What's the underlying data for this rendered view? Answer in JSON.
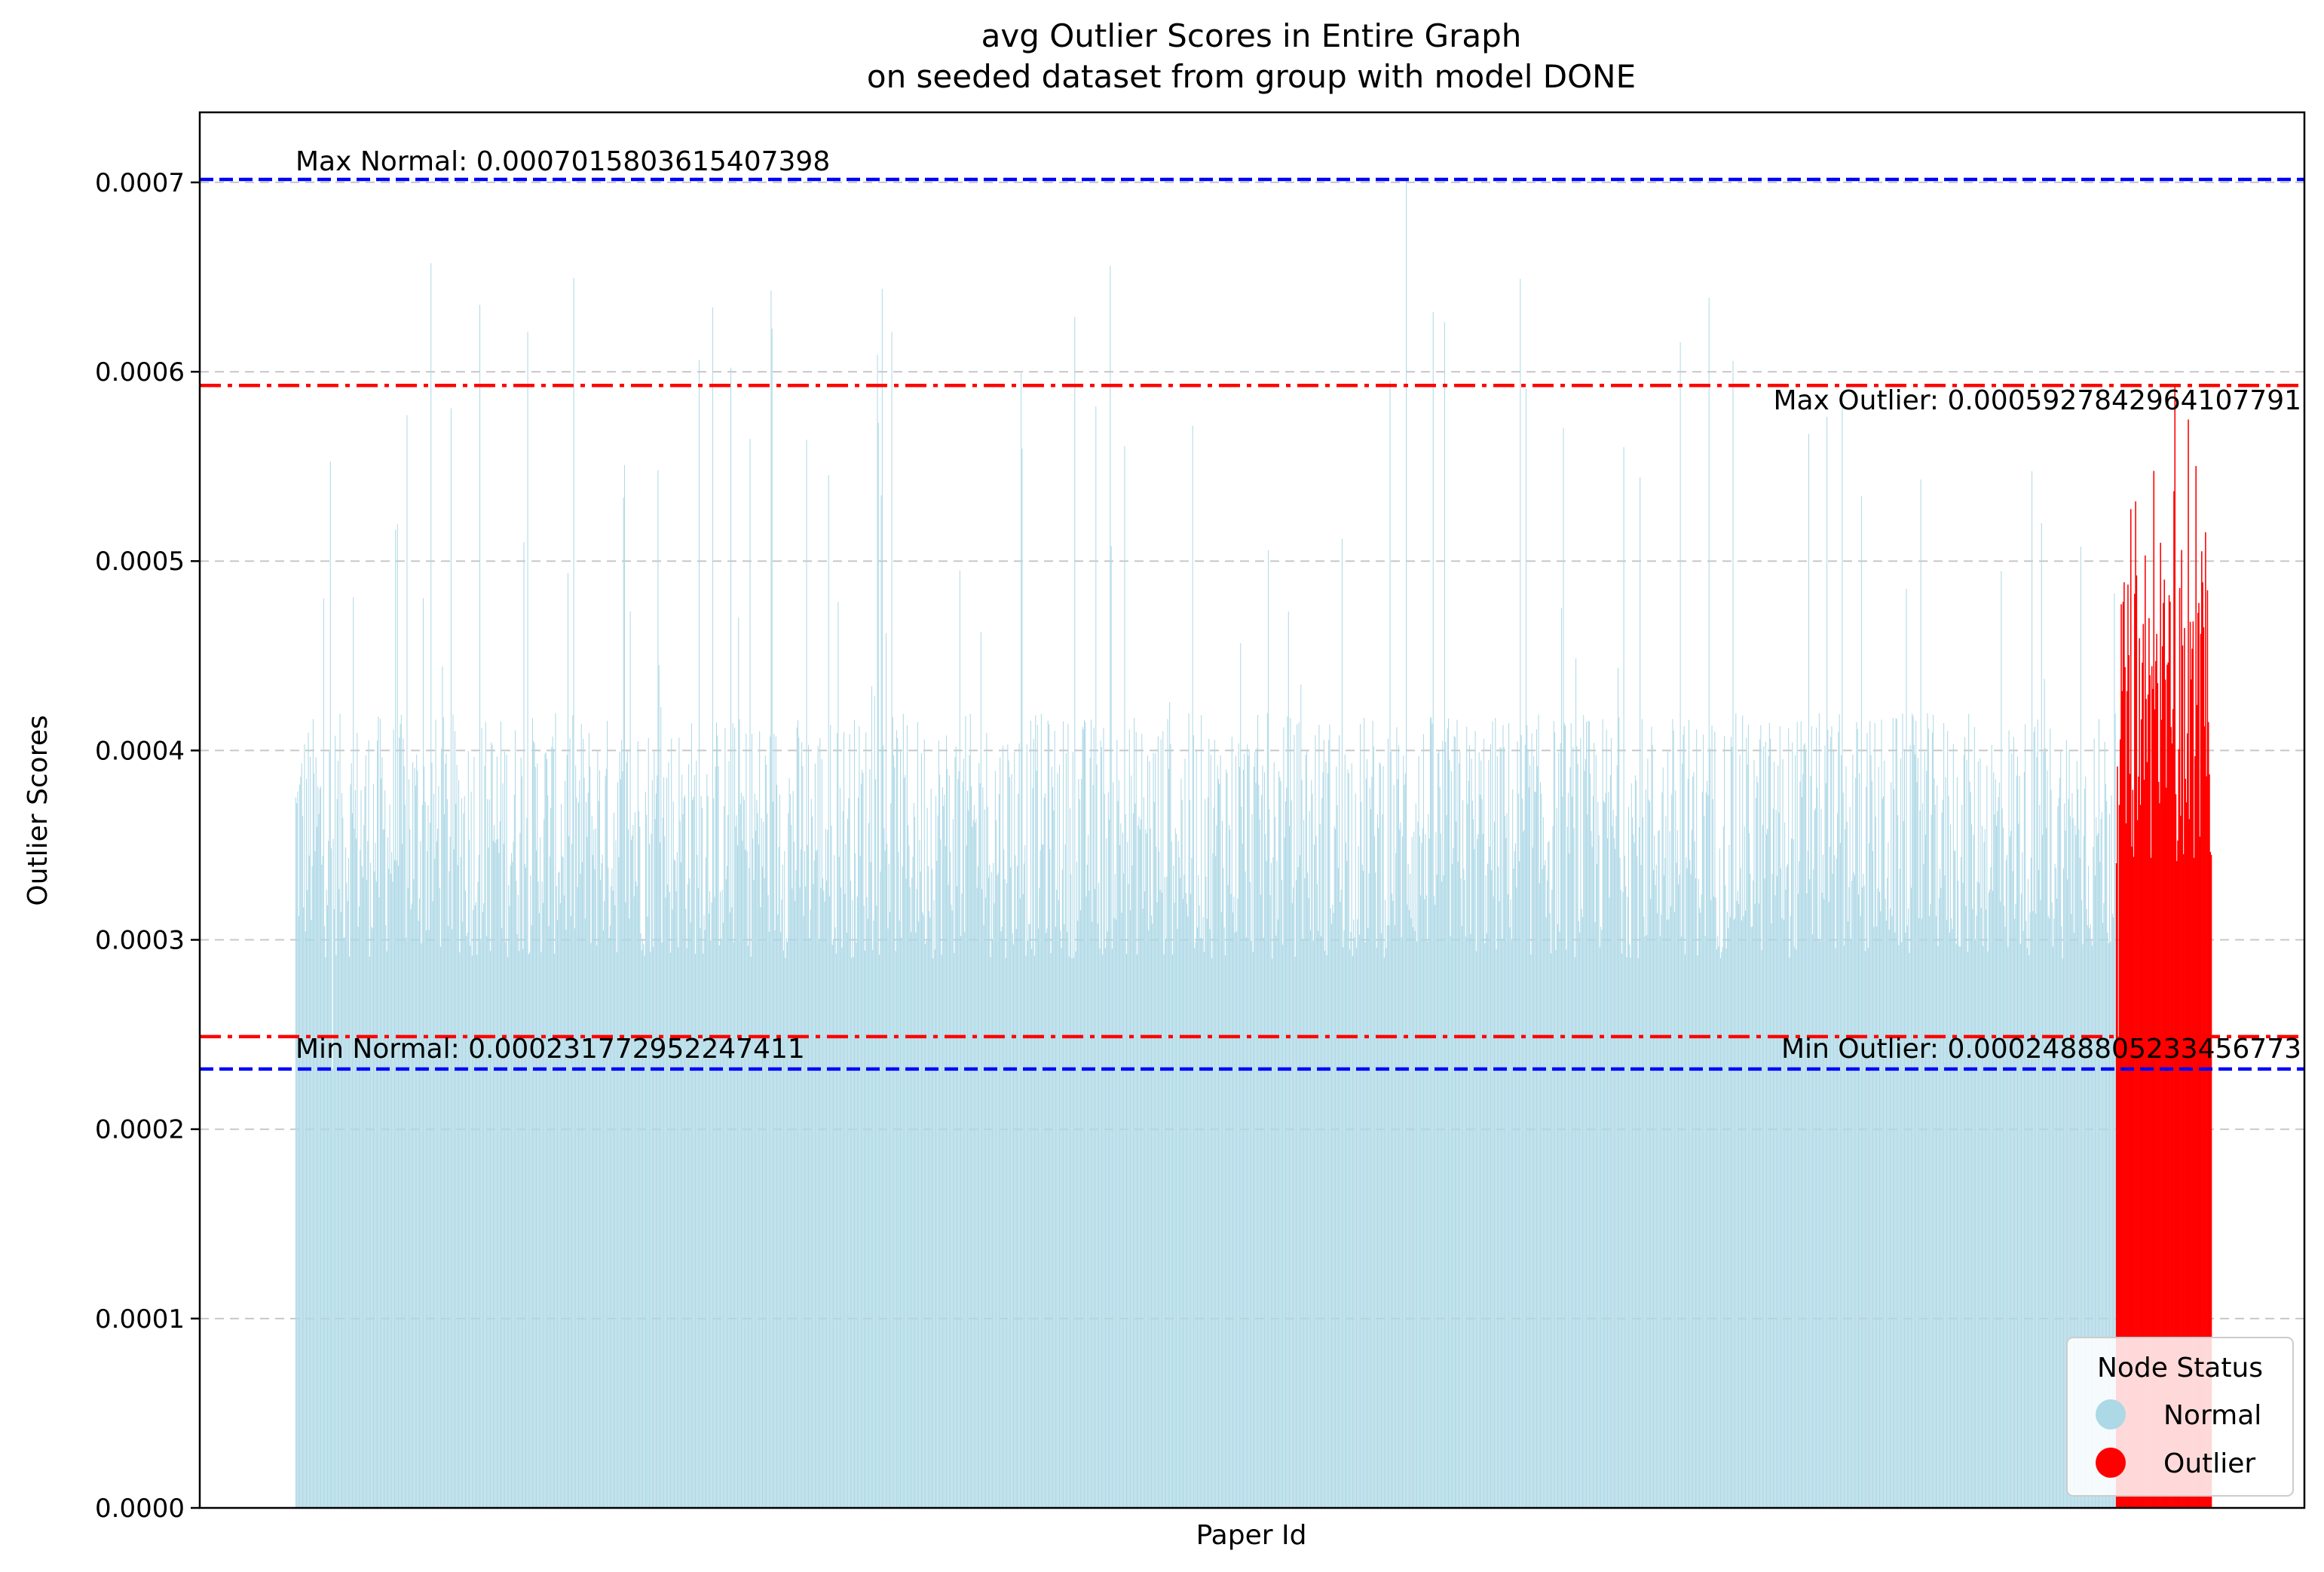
{
  "chart_data": {
    "type": "bar",
    "title": "avg Outlier Scores in Entire Graph",
    "subtitle": "on seeded dataset from group with model DONE",
    "xlabel": "Paper Id",
    "ylabel": "Outlier Scores",
    "ylim": [
      0,
      0.000737
    ],
    "yticks": [
      "0.0000",
      "0.0001",
      "0.0002",
      "0.0003",
      "0.0004",
      "0.0005",
      "0.0006",
      "0.0007"
    ],
    "ytick_values": [
      0,
      0.0001,
      0.0002,
      0.0003,
      0.0004,
      0.0005,
      0.0006,
      0.0007
    ],
    "grid": "horizontal dashed",
    "series": [
      {
        "name": "Normal",
        "color": "#add8e6",
        "count": 1900,
        "min": 0.000231772952247411,
        "max": 0.0007015803615407398,
        "typical_range": [
          0.00029,
          0.00042
        ]
      },
      {
        "name": "Outlier",
        "color": "#ff0000",
        "count": 100,
        "min": 0.0002488805233456773,
        "max": 0.0005927842964107791,
        "typical_range": [
          0.00034,
          0.00049
        ]
      }
    ],
    "reference_lines": [
      {
        "label": "Max Normal: 0.0007015803615407398",
        "value": 0.0007015803615407398,
        "color": "#0000ff",
        "style": "dashed"
      },
      {
        "label": "Max Outlier: 0.0005927842964107791",
        "value": 0.0005927842964107791,
        "color": "#ff0000",
        "style": "dashdot"
      },
      {
        "label": "Min Outlier: 0.0002488805233456773",
        "value": 0.0002488805233456773,
        "color": "#ff0000",
        "style": "dashdot"
      },
      {
        "label": "Min Normal: 0.000231772952247411",
        "value": 0.000231772952247411,
        "color": "#0000ff",
        "style": "dashed"
      }
    ],
    "legend": {
      "title": "Node Status",
      "placement": "lower-right",
      "entries": [
        {
          "label": "Normal",
          "color": "#add8e6"
        },
        {
          "label": "Outlier",
          "color": "#ff0000"
        }
      ]
    }
  }
}
